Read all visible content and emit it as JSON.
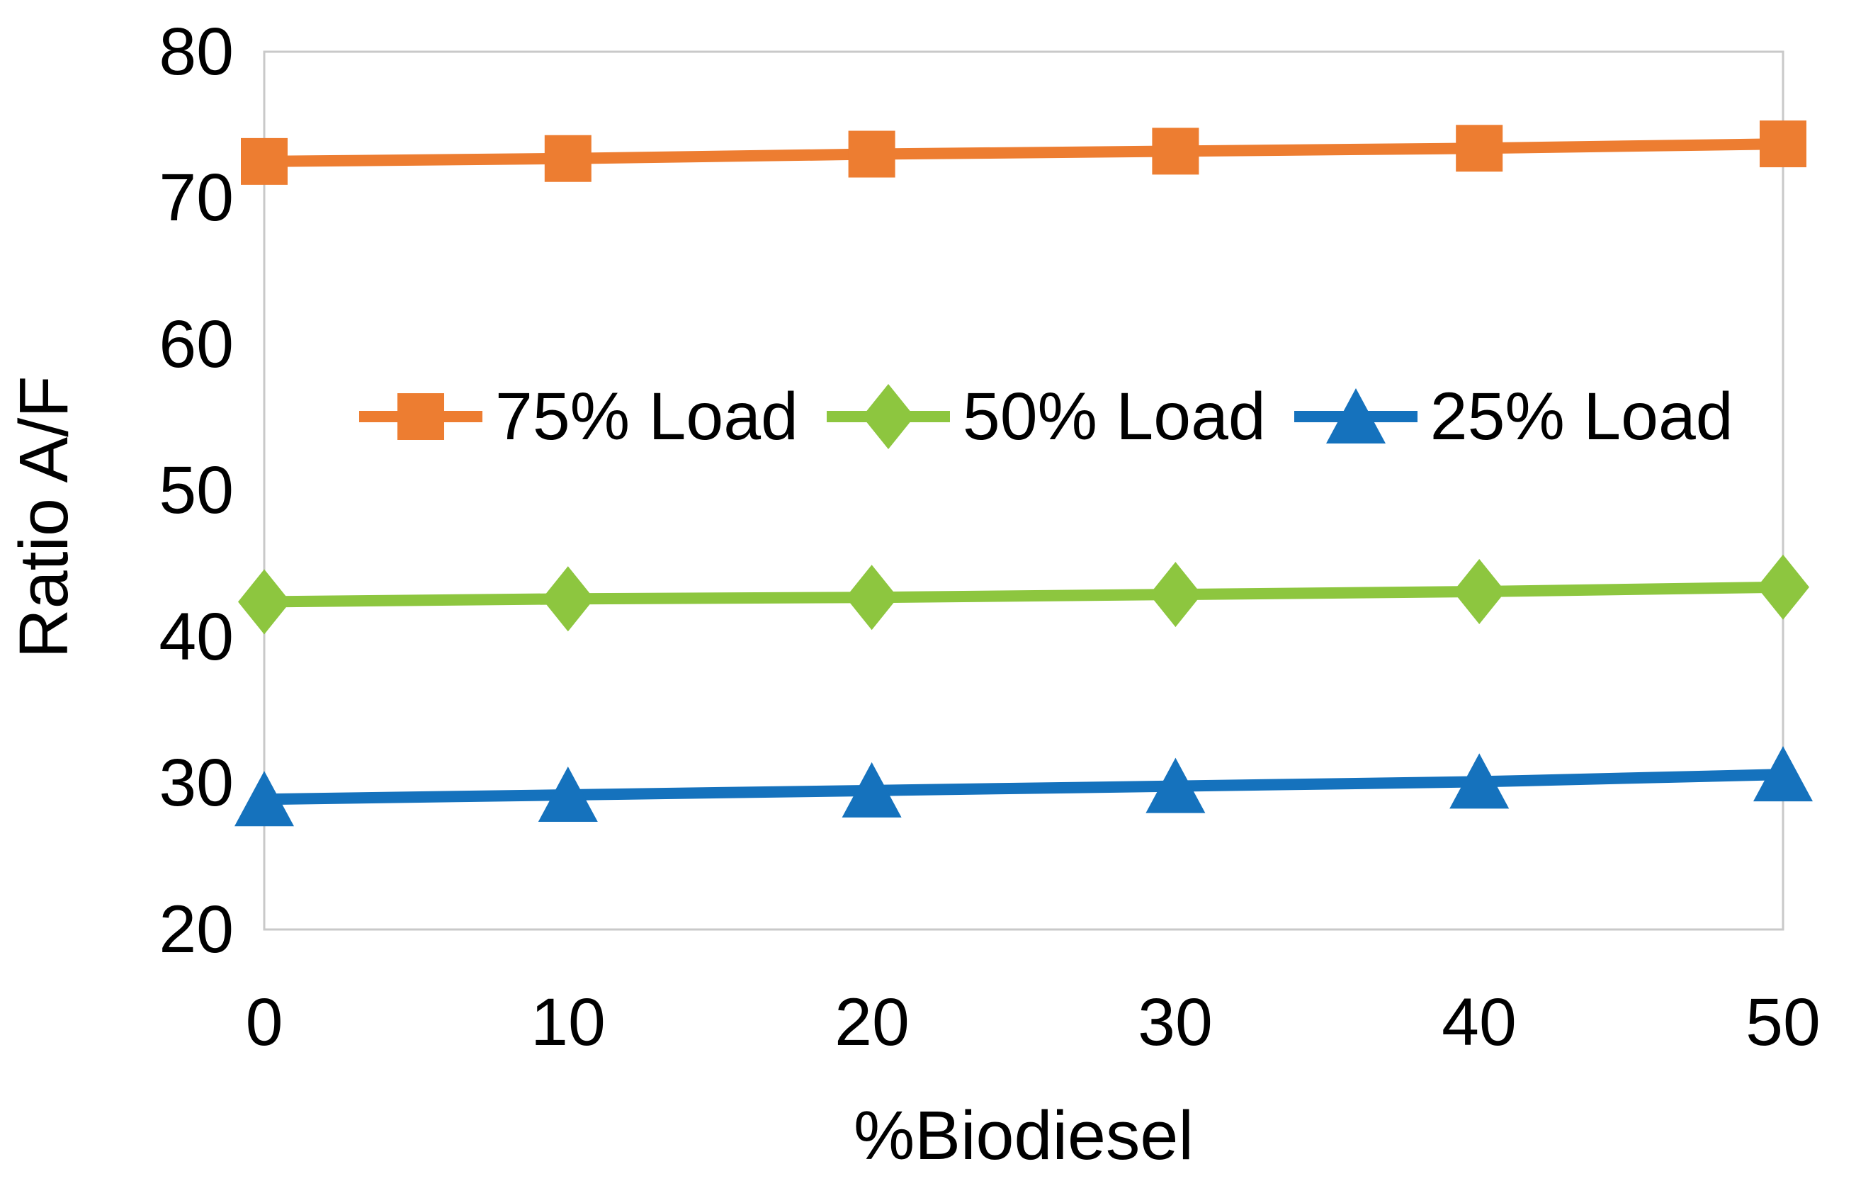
{
  "chart_data": {
    "type": "line",
    "title": "",
    "xlabel": "%Biodiesel",
    "ylabel": "Ratio A/F",
    "x": [
      0,
      10,
      20,
      30,
      40,
      50
    ],
    "xlim": [
      0,
      50
    ],
    "ylim": [
      20,
      80
    ],
    "xtick_labels": [
      "0",
      "10",
      "20",
      "30",
      "40",
      "50"
    ],
    "ytick_labels": [
      "80",
      "70",
      "60",
      "50",
      "40",
      "30",
      "20"
    ],
    "yticks": [
      80,
      70,
      60,
      50,
      40,
      30,
      20
    ],
    "grid": false,
    "legend_position": "center-inside",
    "axis_color": "#c9c9c9",
    "text_color": "#000000",
    "series": [
      {
        "name": "75% Load",
        "marker": "square",
        "color": "#ED7D31",
        "values": [
          72.5,
          72.7,
          73.0,
          73.2,
          73.4,
          73.7
        ]
      },
      {
        "name": "50% Load",
        "marker": "diamond",
        "color": "#8DC63F",
        "values": [
          42.4,
          42.6,
          42.7,
          42.9,
          43.1,
          43.4
        ]
      },
      {
        "name": "25% Load",
        "marker": "triangle",
        "color": "#1572BD",
        "values": [
          28.9,
          29.2,
          29.5,
          29.8,
          30.1,
          30.6
        ]
      }
    ]
  }
}
